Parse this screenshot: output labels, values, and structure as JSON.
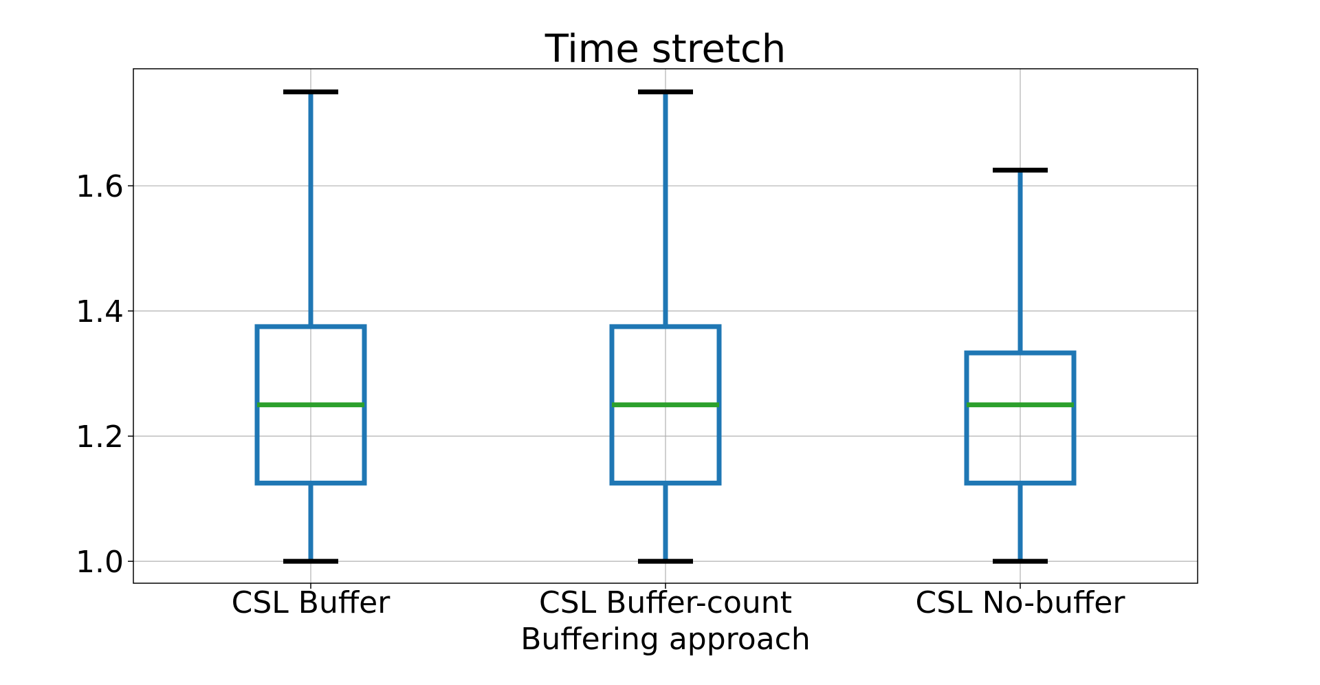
{
  "chart_data": {
    "type": "box",
    "title": "Time stretch",
    "xlabel": "Buffering approach",
    "ylabel": "",
    "categories": [
      "CSL Buffer",
      "CSL Buffer-count",
      "CSL No-buffer"
    ],
    "boxes": [
      {
        "category": "CSL Buffer",
        "whisker_low": 1.0,
        "q1": 1.125,
        "median": 1.25,
        "q3": 1.375,
        "whisker_high": 1.75
      },
      {
        "category": "CSL Buffer-count",
        "whisker_low": 1.0,
        "q1": 1.125,
        "median": 1.25,
        "q3": 1.375,
        "whisker_high": 1.75
      },
      {
        "category": "CSL No-buffer",
        "whisker_low": 1.0,
        "q1": 1.125,
        "median": 1.25,
        "q3": 1.333,
        "whisker_high": 1.625
      }
    ],
    "yticks": [
      1.0,
      1.2,
      1.4,
      1.6
    ],
    "ytick_labels": [
      "1.0",
      "1.2",
      "1.4",
      "1.6"
    ],
    "ylim": [
      0.965,
      1.787
    ],
    "grid": true,
    "colors": {
      "box": "#1f77b4",
      "median": "#2ca02c",
      "caps": "#000000",
      "grid": "#b0b0b0"
    }
  }
}
